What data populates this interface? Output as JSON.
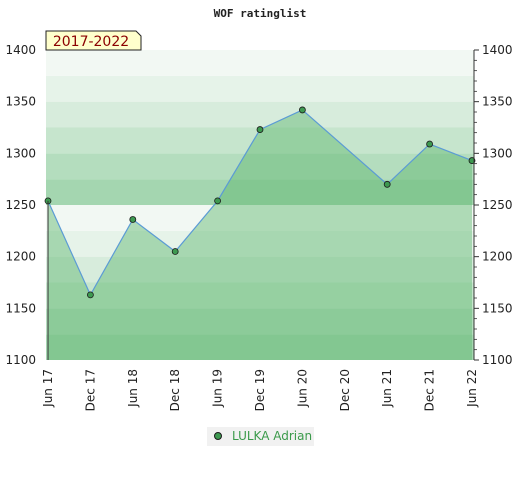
{
  "chart_data": {
    "type": "area",
    "title": "WOF ratinglist",
    "period_label": "2017-2022",
    "categories": [
      "Jun 17",
      "Dec 17",
      "Jun 18",
      "Dec 18",
      "Jun 19",
      "Dec 19",
      "Jun 20",
      "Dec 20",
      "Jun 21",
      "Dec 21",
      "Jun 22"
    ],
    "ylim": [
      1100,
      1400
    ],
    "yticks": [
      1100,
      1150,
      1200,
      1250,
      1300,
      1350,
      1400
    ],
    "series": [
      {
        "name": "LULKA Adrian",
        "points": [
          {
            "x": 0,
            "y": 1254
          },
          {
            "x": 1,
            "y": 1163
          },
          {
            "x": 2,
            "y": 1236
          },
          {
            "x": 3,
            "y": 1205
          },
          {
            "x": 4,
            "y": 1254
          },
          {
            "x": 5,
            "y": 1323
          },
          {
            "x": 6,
            "y": 1342
          },
          {
            "x": 8,
            "y": 1270
          },
          {
            "x": 9,
            "y": 1309
          },
          {
            "x": 10,
            "y": 1293
          }
        ]
      }
    ],
    "colors": {
      "line": "#5b9bd5",
      "fill": "#5cb56c",
      "marker": "#3d9950",
      "legend_text": "#3a9a4a",
      "badge_bg": "#ffffcc",
      "badge_text": "#8b0000"
    },
    "grid": false,
    "legend_position": "bottom-center"
  }
}
